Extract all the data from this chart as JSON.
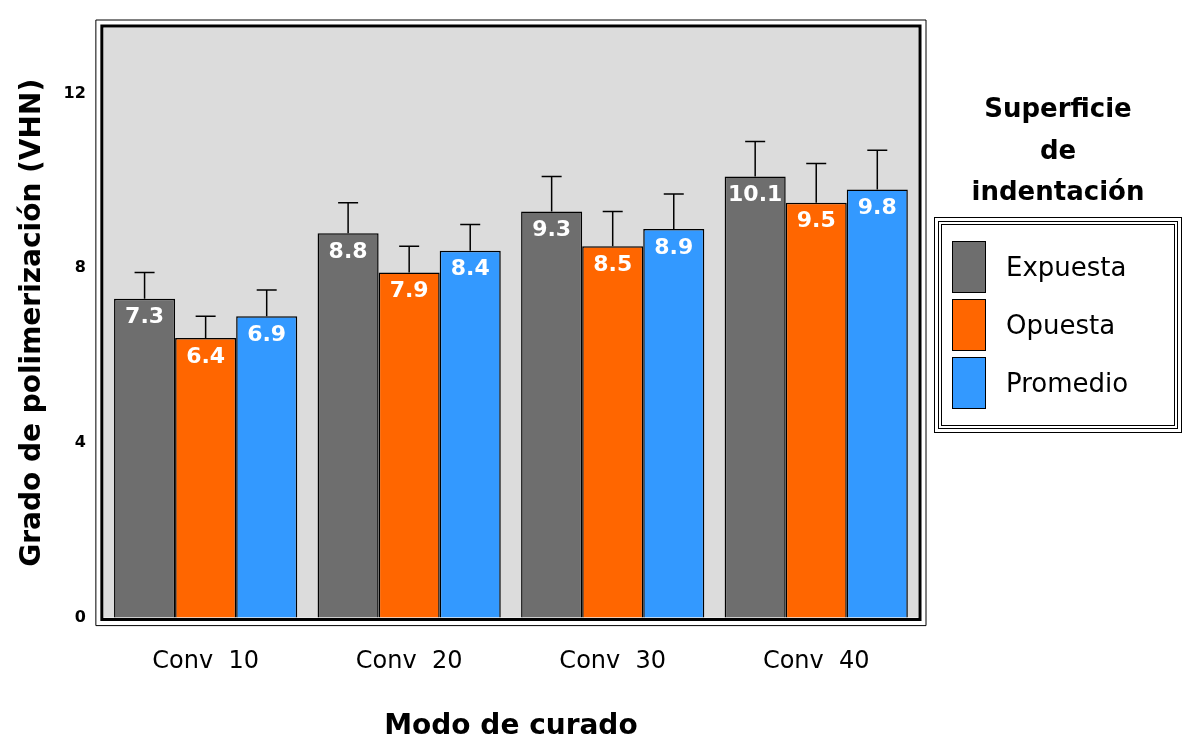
{
  "chart_data": {
    "type": "bar",
    "xlabel": "Modo de curado",
    "ylabel": "Grado de polimerización (VHN)",
    "legend_title": "Superficie de indentación",
    "legend": "right",
    "categories": [
      "Conv  10",
      "Conv  20",
      "Conv  30",
      "Conv  40"
    ],
    "series": [
      {
        "name": "Expuesta",
        "color": "#6e6e6e",
        "values": [
          7.3,
          8.8,
          9.3,
          10.1
        ],
        "errors": [
          [
            7.3,
            7.9
          ],
          [
            8.8,
            9.5
          ],
          [
            9.3,
            10.1
          ],
          [
            10.1,
            10.9
          ]
        ]
      },
      {
        "name": "Opuesta",
        "color": "#ff6600",
        "values": [
          6.4,
          7.9,
          8.5,
          9.5
        ],
        "errors": [
          [
            6.4,
            6.9
          ],
          [
            7.9,
            8.5
          ],
          [
            8.5,
            9.3
          ],
          [
            9.5,
            10.4
          ]
        ]
      },
      {
        "name": "Promedio",
        "color": "#3399ff",
        "values": [
          6.9,
          8.4,
          8.9,
          9.8
        ],
        "errors": [
          [
            6.9,
            7.5
          ],
          [
            8.4,
            9.0
          ],
          [
            8.9,
            9.7
          ],
          [
            9.8,
            10.7
          ]
        ]
      }
    ],
    "ylim": [
      0,
      13.5
    ],
    "yticks": [
      0,
      4,
      8,
      12
    ],
    "grid": false,
    "data_labels": true
  }
}
